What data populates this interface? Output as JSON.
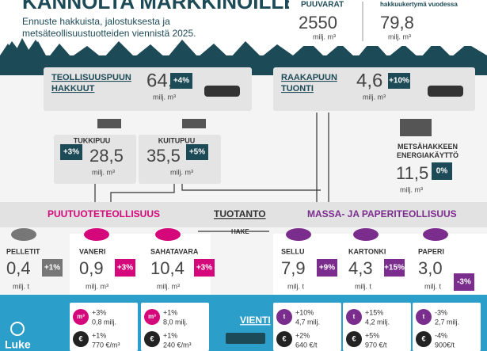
{
  "header": {
    "title": "KANNOLTA MARKKINOILLE",
    "subtitle": "Ennuste hakkuista, jalostuksesta ja metsäteollisuustuotteiden viennistä 2025."
  },
  "stocks": [
    {
      "label": "PUUVARAT",
      "value": "2550",
      "unit": "milj. m³"
    },
    {
      "label": "hakkuukertymä vuodessa",
      "value": "79,8",
      "unit": "milj. m³"
    }
  ],
  "sources": [
    {
      "label": "TEOLLISUUSPUUN HAKKUUT",
      "value": "64,0",
      "unit": "milj. m³",
      "change": "+4%"
    },
    {
      "label": "RAAKAPUUN TUONTI",
      "value": "4,6",
      "unit": "milj. m³",
      "change": "+10%"
    }
  ],
  "wood": [
    {
      "label": "TUKKIPUU",
      "value": "28,5",
      "unit": "milj. m³",
      "change": "+3%"
    },
    {
      "label": "KUITUPUU",
      "value": "35,5",
      "unit": "milj. m³",
      "change": "+5%"
    }
  ],
  "energy": {
    "label": "METSÄHAKKEEN ENERGIAKÄYTTÖ",
    "value": "11,5",
    "unit": "milj. m³",
    "change": "0%"
  },
  "sections": {
    "wood_products": "PUUTUOTETEOLLISUUS",
    "production": "TUOTANTO",
    "pulp_paper": "MASSA- JA PAPERITEOLLISUUS",
    "chips": "HAKE",
    "export": "VIENTI"
  },
  "products": [
    {
      "label": "PELLETIT",
      "value": "0,4",
      "unit": "milj. t",
      "change": "+1%"
    },
    {
      "label": "VANERI",
      "value": "0,9",
      "unit": "milj. m³",
      "change": "+3%"
    },
    {
      "label": "SAHATAVARA",
      "value": "10,4",
      "unit": "milj. m³",
      "change": "+3%"
    },
    {
      "label": "SELLU",
      "value": "7,9",
      "unit": "milj. t",
      "change": "+9%"
    },
    {
      "label": "KARTONKI",
      "value": "4,3",
      "unit": "milj. t",
      "change": "+15%"
    },
    {
      "label": "PAPERI",
      "value": "3,0",
      "unit": "milj. t",
      "change": "-3%"
    }
  ],
  "exports": [
    {
      "volume_unit": "m³",
      "volume_change": "+3%",
      "volume": "0,8 milj.",
      "price_symbol": "€",
      "price_change": "+1%",
      "price": "770 €/m³"
    },
    {
      "volume_unit": "m³",
      "volume_change": "+1%",
      "volume": "8,0 milj.",
      "price_symbol": "€",
      "price_change": "+1%",
      "price": "240 €/m³"
    },
    {
      "volume_unit": "t",
      "volume_change": "+10%",
      "volume": "4,7 milj.",
      "price_symbol": "€",
      "price_change": "+2%",
      "price": "640 €/t"
    },
    {
      "volume_unit": "t",
      "volume_change": "+15%",
      "volume": "4,2 milj.",
      "price_symbol": "€",
      "price_change": "+5%",
      "price": "970 €/t"
    },
    {
      "volume_unit": "t",
      "volume_change": "-3%",
      "volume": "2,7 milj.",
      "price_symbol": "€",
      "price_change": "-4%",
      "price": "900€/t"
    }
  ],
  "logo": "Luke"
}
